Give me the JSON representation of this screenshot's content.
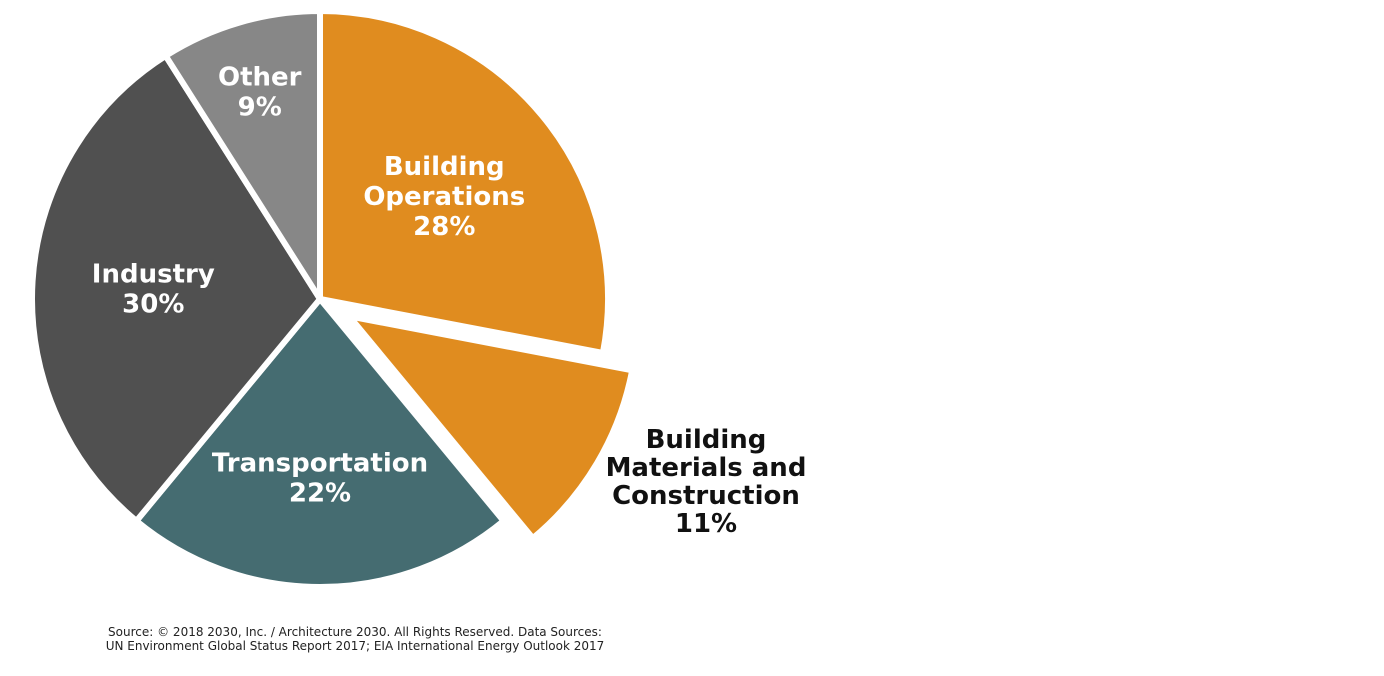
{
  "chart_data": {
    "type": "pie",
    "start_angle_deg": 0,
    "direction": "clockwise",
    "slices": [
      {
        "label_lines": [
          "Building",
          "Operations"
        ],
        "value": 28,
        "value_label": "28%",
        "color": "#E08C1F",
        "label_color": "#ffffff",
        "exploded": false,
        "label_outside": false
      },
      {
        "label_lines": [
          "Building",
          "Materials and",
          "Construction"
        ],
        "value": 11,
        "value_label": "11%",
        "color": "#E08C1F",
        "label_color": "#111111",
        "exploded": true,
        "label_outside": true
      },
      {
        "label_lines": [
          "Transportation"
        ],
        "value": 22,
        "value_label": "22%",
        "color": "#456C71",
        "label_color": "#ffffff",
        "exploded": false,
        "label_outside": false
      },
      {
        "label_lines": [
          "Industry"
        ],
        "value": 30,
        "value_label": "30%",
        "color": "#505050",
        "label_color": "#ffffff",
        "exploded": false,
        "label_outside": false
      },
      {
        "label_lines": [
          "Other"
        ],
        "value": 9,
        "value_label": "9%",
        "color": "#878787",
        "label_color": "#ffffff",
        "exploded": false,
        "label_outside": false
      }
    ]
  },
  "source": {
    "line1": "Source: © 2018 2030, Inc. / Architecture 2030. All Rights Reserved. Data Sources:",
    "line2": "UN Environment Global Status Report 2017; EIA International Energy Outlook 2017"
  }
}
